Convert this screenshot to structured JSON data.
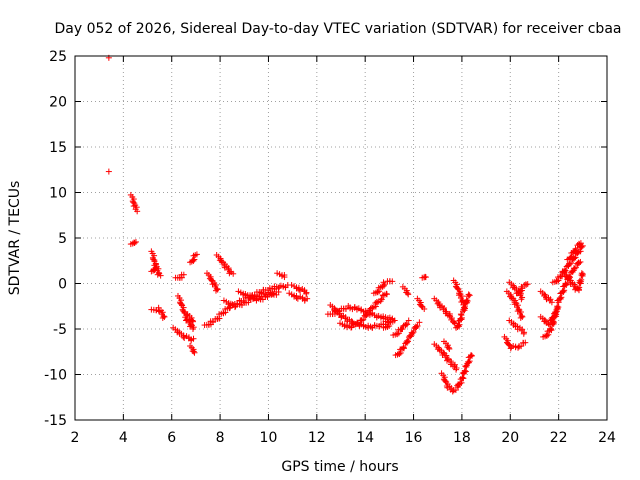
{
  "chart_data": {
    "type": "scatter",
    "title": "Day 052 of 2026, Sidereal Day-to-day VTEC variation (SDTVAR) for receiver cbaa",
    "xlabel": "GPS time / hours",
    "ylabel": "SDTVAR / TECUs",
    "xlim": [
      2,
      24
    ],
    "ylim": [
      -15,
      25
    ],
    "xticks": [
      2,
      4,
      6,
      8,
      10,
      12,
      14,
      16,
      18,
      20,
      22,
      24
    ],
    "yticks": [
      -15,
      -10,
      -5,
      0,
      5,
      10,
      15,
      20,
      25
    ],
    "grid": true,
    "marker": "+",
    "series": [
      {
        "name": "SDTVAR",
        "color": "#ff0000",
        "segments": [
          {
            "x": [
              3.4
            ],
            "y": [
              24.8
            ]
          },
          {
            "x": [
              3.4
            ],
            "y": [
              12.3
            ]
          },
          {
            "x": [
              4.35,
              4.45,
              4.55
            ],
            "y": [
              9.6,
              8.8,
              8.0
            ]
          },
          {
            "x": [
              4.35,
              4.5
            ],
            "y": [
              4.2,
              4.7
            ]
          },
          {
            "x": [
              5.2,
              5.3
            ],
            "y": [
              3.4,
              2.2
            ]
          },
          {
            "x": [
              5.2,
              5.35,
              5.5
            ],
            "y": [
              1.2,
              2.0,
              0.8
            ]
          },
          {
            "x": [
              5.2,
              5.5,
              5.7
            ],
            "y": [
              -3.0,
              -2.8,
              -3.8
            ]
          },
          {
            "x": [
              6.2,
              6.5
            ],
            "y": [
              0.5,
              0.9
            ]
          },
          {
            "x": [
              6.3,
              6.6,
              6.9
            ],
            "y": [
              -1.5,
              -3.8,
              -5.0
            ]
          },
          {
            "x": [
              6.1,
              6.5,
              6.9
            ],
            "y": [
              -5.0,
              -5.8,
              -6.2
            ]
          },
          {
            "x": [
              6.8,
              6.95
            ],
            "y": [
              -7.0,
              -7.6
            ]
          },
          {
            "x": [
              6.8,
              7.0
            ],
            "y": [
              2.2,
              3.2
            ]
          },
          {
            "x": [
              6.7,
              6.9
            ],
            "y": [
              -3.5,
              -4.2
            ]
          },
          {
            "x": [
              7.5,
              7.7,
              7.9
            ],
            "y": [
              1.0,
              0.2,
              -0.8
            ]
          },
          {
            "x": [
              7.9,
              8.2,
              8.5
            ],
            "y": [
              3.0,
              2.0,
              1.0
            ]
          },
          {
            "x": [
              7.4,
              7.7,
              8.0
            ],
            "y": [
              -4.7,
              -4.2,
              -3.7
            ]
          },
          {
            "x": [
              8.0,
              8.4,
              8.8,
              9.2,
              9.6,
              10.0,
              10.4,
              10.8
            ],
            "y": [
              -3.5,
              -2.6,
              -2.0,
              -1.5,
              -1.0,
              -0.6,
              -0.4,
              -0.3
            ]
          },
          {
            "x": [
              8.2,
              8.6,
              9.0,
              9.4,
              9.8,
              10.2
            ],
            "y": [
              -2.0,
              -2.5,
              -2.2,
              -1.6,
              -1.2,
              -1.0
            ]
          },
          {
            "x": [
              8.8,
              9.2,
              9.6,
              10.0,
              10.4
            ],
            "y": [
              -1.0,
              -1.4,
              -1.8,
              -1.4,
              -1.0
            ]
          },
          {
            "x": [
              10.4,
              10.7
            ],
            "y": [
              1.0,
              0.8
            ]
          },
          {
            "x": [
              10.9,
              11.2,
              11.6
            ],
            "y": [
              -1.2,
              -1.5,
              -1.8
            ]
          },
          {
            "x": [
              11.0,
              11.3,
              11.6
            ],
            "y": [
              -0.3,
              -0.6,
              -1.0
            ]
          },
          {
            "x": [
              12.5,
              12.9,
              13.3,
              13.7,
              14.1,
              14.5,
              14.9,
              15.2
            ],
            "y": [
              -3.5,
              -3.0,
              -2.6,
              -2.8,
              -3.2,
              -3.6,
              -3.8,
              -4.0
            ]
          },
          {
            "x": [
              12.6,
              13.0,
              13.4,
              13.8,
              14.2,
              14.6,
              15.0
            ],
            "y": [
              -2.5,
              -3.5,
              -4.2,
              -4.6,
              -4.8,
              -4.6,
              -4.2
            ]
          },
          {
            "x": [
              13.0,
              13.4,
              13.8,
              14.2,
              14.6,
              14.9
            ],
            "y": [
              -4.5,
              -4.8,
              -4.2,
              -3.0,
              -1.8,
              -1.0
            ]
          },
          {
            "x": [
              14.8,
              15.1
            ],
            "y": [
              -5.0,
              -4.2
            ]
          },
          {
            "x": [
              14.4,
              14.8,
              15.1
            ],
            "y": [
              -1.2,
              0.0,
              0.3
            ]
          },
          {
            "x": [
              15.2,
              15.5,
              15.8
            ],
            "y": [
              -5.8,
              -5.0,
              -4.2
            ]
          },
          {
            "x": [
              15.3,
              15.6,
              15.9,
              16.2
            ],
            "y": [
              -8.0,
              -7.0,
              -5.6,
              -4.4
            ]
          },
          {
            "x": [
              15.6,
              15.8
            ],
            "y": [
              -0.5,
              -1.2
            ]
          },
          {
            "x": [
              16.4,
              16.5
            ],
            "y": [
              0.5,
              0.8
            ]
          },
          {
            "x": [
              16.2,
              16.4
            ],
            "y": [
              -1.8,
              -2.8
            ]
          },
          {
            "x": [
              16.9,
              17.1,
              17.3,
              17.5,
              17.7
            ],
            "y": [
              -1.8,
              -2.4,
              -3.0,
              -3.6,
              -4.4
            ]
          },
          {
            "x": [
              16.9,
              17.2,
              17.5,
              17.8
            ],
            "y": [
              -6.8,
              -7.6,
              -8.6,
              -9.4
            ]
          },
          {
            "x": [
              17.2,
              17.4,
              17.6,
              17.8,
              18.0,
              18.2,
              18.4
            ],
            "y": [
              -10.0,
              -11.2,
              -11.8,
              -11.5,
              -10.5,
              -9.0,
              -7.8
            ]
          },
          {
            "x": [
              17.7,
              17.9,
              18.1
            ],
            "y": [
              0.2,
              -1.0,
              -2.5
            ]
          },
          {
            "x": [
              17.8,
              18.0,
              18.3
            ],
            "y": [
              -5.0,
              -3.5,
              -1.2
            ]
          },
          {
            "x": [
              17.3,
              17.5
            ],
            "y": [
              -6.5,
              -7.2
            ]
          },
          {
            "x": [
              19.9,
              20.2,
              20.5
            ],
            "y": [
              -1.0,
              -2.0,
              -3.8
            ]
          },
          {
            "x": [
              20.0,
              20.3,
              20.6
            ],
            "y": [
              -4.2,
              -4.8,
              -5.4
            ]
          },
          {
            "x": [
              20.0,
              20.3,
              20.5
            ],
            "y": [
              0.0,
              -0.8,
              -1.6
            ]
          },
          {
            "x": [
              20.3,
              20.5,
              20.7
            ],
            "y": [
              -1.2,
              -0.5,
              0.0
            ]
          },
          {
            "x": [
              19.8,
              20.0,
              20.3,
              20.6
            ],
            "y": [
              -6.0,
              -7.0,
              -7.0,
              -6.5
            ]
          },
          {
            "x": [
              21.3,
              21.5,
              21.7
            ],
            "y": [
              -1.0,
              -1.5,
              -2.0
            ]
          },
          {
            "x": [
              21.3,
              21.6,
              21.9
            ],
            "y": [
              -3.8,
              -4.5,
              -3.0
            ]
          },
          {
            "x": [
              21.4,
              21.7,
              22.0
            ],
            "y": [
              -6.0,
              -5.0,
              -2.2
            ]
          },
          {
            "x": [
              21.8,
              22.1,
              22.4,
              22.7,
              23.0
            ],
            "y": [
              0.0,
              0.8,
              2.0,
              3.0,
              4.2
            ]
          },
          {
            "x": [
              22.0,
              22.3,
              22.6,
              22.9
            ],
            "y": [
              -2.0,
              0.0,
              1.5,
              2.5
            ]
          },
          {
            "x": [
              22.2,
              22.5,
              22.8,
              23.0
            ],
            "y": [
              1.2,
              0.2,
              -0.8,
              1.2
            ]
          },
          {
            "x": [
              22.4,
              22.7,
              22.9
            ],
            "y": [
              2.5,
              3.8,
              4.5
            ]
          }
        ]
      }
    ]
  }
}
